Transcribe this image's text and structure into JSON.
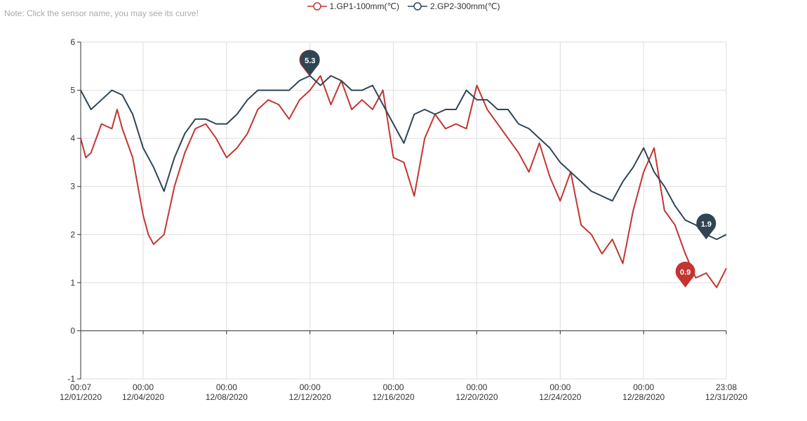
{
  "note": "Note: Click the sensor name, you may see its curve!",
  "legend": [
    {
      "label": "1.GP1-100mm(℃)",
      "color": "#c23531"
    },
    {
      "label": "2.GP2-300mm(℃)",
      "color": "#2f4554"
    }
  ],
  "chart_data": {
    "type": "line",
    "ylim": [
      -1,
      6
    ],
    "xlim": [
      "12/01/2020 00:07",
      "12/31/2020 23:08"
    ],
    "y_ticks": [
      "-1",
      "0",
      "1",
      "2",
      "3",
      "4",
      "5",
      "6"
    ],
    "x_ticks": [
      {
        "time": "00:07",
        "date": "12/01/2020"
      },
      {
        "time": "00:00",
        "date": "12/04/2020"
      },
      {
        "time": "00:00",
        "date": "12/08/2020"
      },
      {
        "time": "00:00",
        "date": "12/12/2020"
      },
      {
        "time": "00:00",
        "date": "12/16/2020"
      },
      {
        "time": "00:00",
        "date": "12/20/2020"
      },
      {
        "time": "00:00",
        "date": "12/24/2020"
      },
      {
        "time": "00:00",
        "date": "12/28/2020"
      },
      {
        "time": "23:08",
        "date": "12/31/2020"
      }
    ],
    "series": [
      {
        "name": "1.GP1-100mm(℃)",
        "color": "#c23531",
        "x": [
          "12/01/2020 00:07",
          "12/01/2020 06:00",
          "12/01/2020 12:00",
          "12/02/2020 00:00",
          "12/02/2020 12:00",
          "12/02/2020 18:00",
          "12/03/2020 00:00",
          "12/03/2020 12:00",
          "12/04/2020 00:00",
          "12/04/2020 06:00",
          "12/04/2020 12:00",
          "12/05/2020 00:00",
          "12/05/2020 12:00",
          "12/06/2020 00:00",
          "12/06/2020 12:00",
          "12/07/2020 00:00",
          "12/07/2020 12:00",
          "12/08/2020 00:00",
          "12/08/2020 12:00",
          "12/09/2020 00:00",
          "12/09/2020 12:00",
          "12/10/2020 00:00",
          "12/10/2020 12:00",
          "12/11/2020 00:00",
          "12/11/2020 12:00",
          "12/12/2020 00:00",
          "12/12/2020 12:00",
          "12/13/2020 00:00",
          "12/13/2020 12:00",
          "12/14/2020 00:00",
          "12/14/2020 12:00",
          "12/15/2020 00:00",
          "12/15/2020 12:00",
          "12/16/2020 00:00",
          "12/16/2020 12:00",
          "12/17/2020 00:00",
          "12/17/2020 12:00",
          "12/18/2020 00:00",
          "12/18/2020 12:00",
          "12/19/2020 00:00",
          "12/19/2020 12:00",
          "12/20/2020 00:00",
          "12/20/2020 12:00",
          "12/21/2020 00:00",
          "12/21/2020 12:00",
          "12/22/2020 00:00",
          "12/22/2020 12:00",
          "12/23/2020 00:00",
          "12/23/2020 12:00",
          "12/24/2020 00:00",
          "12/24/2020 12:00",
          "12/25/2020 00:00",
          "12/25/2020 12:00",
          "12/26/2020 00:00",
          "12/26/2020 12:00",
          "12/27/2020 00:00",
          "12/27/2020 12:00",
          "12/28/2020 00:00",
          "12/28/2020 12:00",
          "12/29/2020 00:00",
          "12/29/2020 12:00",
          "12/30/2020 00:00",
          "12/30/2020 12:00",
          "12/31/2020 00:00",
          "12/31/2020 12:00",
          "12/31/2020 23:08"
        ],
        "y": [
          4.0,
          3.6,
          3.7,
          4.3,
          4.2,
          4.6,
          4.2,
          3.6,
          2.4,
          2.0,
          1.8,
          2.0,
          3.0,
          3.7,
          4.2,
          4.3,
          4.0,
          3.6,
          3.8,
          4.1,
          4.6,
          4.8,
          4.7,
          4.4,
          4.8,
          5.0,
          5.3,
          4.7,
          5.2,
          4.6,
          4.8,
          4.6,
          5.0,
          3.6,
          3.5,
          2.8,
          4.0,
          4.5,
          4.2,
          4.3,
          4.2,
          5.1,
          4.6,
          4.3,
          4.0,
          3.7,
          3.3,
          3.9,
          3.2,
          2.7,
          3.3,
          2.2,
          2.0,
          1.6,
          1.9,
          1.4,
          2.5,
          3.3,
          3.8,
          2.5,
          2.2,
          1.6,
          1.1,
          1.2,
          0.9,
          1.3
        ],
        "markPoints": [
          {
            "label": "5.3",
            "x": "12/11/2020 23:00",
            "y": 5.3
          },
          {
            "label": "0.9",
            "x": "12/30/2020 00:00",
            "y": 0.9
          }
        ]
      },
      {
        "name": "2.GP2-300mm(℃)",
        "color": "#2f4554",
        "x": [
          "12/01/2020 00:07",
          "12/01/2020 12:00",
          "12/02/2020 00:00",
          "12/02/2020 12:00",
          "12/03/2020 00:00",
          "12/03/2020 12:00",
          "12/04/2020 00:00",
          "12/04/2020 12:00",
          "12/05/2020 00:00",
          "12/05/2020 12:00",
          "12/06/2020 00:00",
          "12/06/2020 12:00",
          "12/07/2020 00:00",
          "12/07/2020 12:00",
          "12/08/2020 00:00",
          "12/08/2020 12:00",
          "12/09/2020 00:00",
          "12/09/2020 12:00",
          "12/10/2020 00:00",
          "12/10/2020 12:00",
          "12/11/2020 00:00",
          "12/11/2020 12:00",
          "12/12/2020 00:00",
          "12/12/2020 12:00",
          "12/13/2020 00:00",
          "12/13/2020 12:00",
          "12/14/2020 00:00",
          "12/14/2020 12:00",
          "12/15/2020 00:00",
          "12/15/2020 12:00",
          "12/16/2020 00:00",
          "12/16/2020 12:00",
          "12/17/2020 00:00",
          "12/17/2020 12:00",
          "12/18/2020 00:00",
          "12/18/2020 12:00",
          "12/19/2020 00:00",
          "12/19/2020 12:00",
          "12/20/2020 00:00",
          "12/20/2020 12:00",
          "12/21/2020 00:00",
          "12/21/2020 12:00",
          "12/22/2020 00:00",
          "12/22/2020 12:00",
          "12/23/2020 00:00",
          "12/23/2020 12:00",
          "12/24/2020 00:00",
          "12/24/2020 12:00",
          "12/25/2020 00:00",
          "12/25/2020 12:00",
          "12/26/2020 00:00",
          "12/26/2020 12:00",
          "12/27/2020 00:00",
          "12/27/2020 12:00",
          "12/28/2020 00:00",
          "12/28/2020 12:00",
          "12/29/2020 00:00",
          "12/29/2020 12:00",
          "12/30/2020 00:00",
          "12/30/2020 12:00",
          "12/31/2020 00:00",
          "12/31/2020 12:00",
          "12/31/2020 23:08"
        ],
        "y": [
          5.0,
          4.6,
          4.8,
          5.0,
          4.9,
          4.5,
          3.8,
          3.4,
          2.9,
          3.6,
          4.1,
          4.4,
          4.4,
          4.3,
          4.3,
          4.5,
          4.8,
          5.0,
          5.0,
          5.0,
          5.0,
          5.2,
          5.3,
          5.1,
          5.3,
          5.2,
          5.0,
          5.0,
          5.1,
          4.7,
          4.3,
          3.9,
          4.5,
          4.6,
          4.5,
          4.6,
          4.6,
          5.0,
          4.8,
          4.8,
          4.6,
          4.6,
          4.3,
          4.2,
          4.0,
          3.8,
          3.5,
          3.3,
          3.1,
          2.9,
          2.8,
          2.7,
          3.1,
          3.4,
          3.8,
          3.3,
          3.0,
          2.6,
          2.3,
          2.2,
          2.0,
          1.9,
          2.0
        ],
        "markPoints": [
          {
            "label": "5.3",
            "x": "12/12/2020 00:00",
            "y": 5.3
          },
          {
            "label": "1.9",
            "x": "12/31/2020 00:00",
            "y": 1.9
          }
        ]
      }
    ]
  }
}
